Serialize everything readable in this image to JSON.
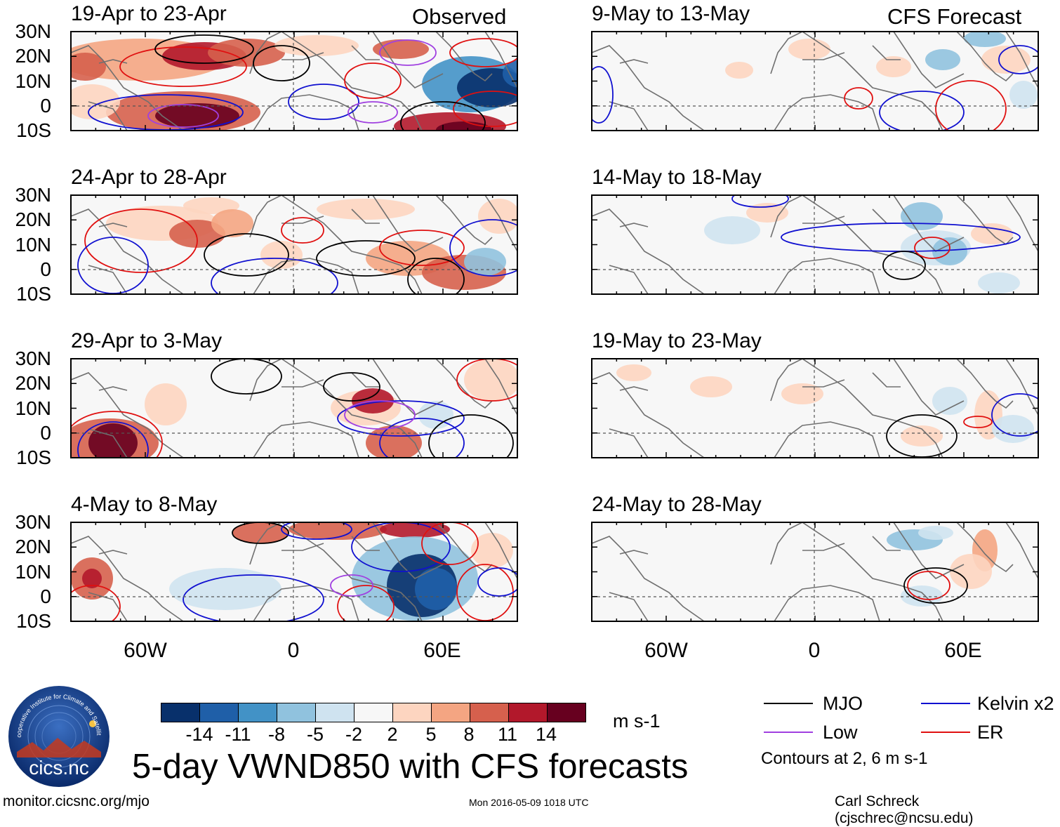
{
  "headers": {
    "observed": "Observed",
    "forecast": "CFS Forecast"
  },
  "panels": [
    {
      "id": "p1",
      "column": "observed",
      "title": "19-Apr to 23-Apr"
    },
    {
      "id": "p2",
      "column": "observed",
      "title": "24-Apr to 28-Apr"
    },
    {
      "id": "p3",
      "column": "observed",
      "title": "29-Apr to 3-May"
    },
    {
      "id": "p4",
      "column": "observed",
      "title": "4-May to 8-May"
    },
    {
      "id": "p5",
      "column": "forecast",
      "title": "9-May to 13-May"
    },
    {
      "id": "p6",
      "column": "forecast",
      "title": "14-May to 18-May"
    },
    {
      "id": "p7",
      "column": "forecast",
      "title": "19-May to 23-May"
    },
    {
      "id": "p8",
      "column": "forecast",
      "title": "24-May to 28-May"
    }
  ],
  "lat_labels": [
    "30N",
    "20N",
    "10N",
    "0",
    "10S"
  ],
  "lon_labels": [
    "60W",
    "0",
    "60E"
  ],
  "colorbar": {
    "colors": [
      "#08306b",
      "#1f5fa8",
      "#4292c6",
      "#90c2de",
      "#cfe3f0",
      "#f7f7f7",
      "#fdd5c0",
      "#f4a582",
      "#d6604d",
      "#b2182b",
      "#67001f"
    ],
    "labels": [
      "-14",
      "-11",
      "-8",
      "-5",
      "-2",
      "2",
      "5",
      "8",
      "11",
      "14"
    ],
    "units": "m s-1"
  },
  "title": "5-day VWND850 with CFS forecasts",
  "legend": {
    "items": [
      {
        "label": "MJO",
        "color": "#000000"
      },
      {
        "label": "Kelvin x2",
        "color": "#1010d0"
      },
      {
        "label": "Low",
        "color": "#a040e0"
      },
      {
        "label": "ER",
        "color": "#e01010"
      }
    ],
    "note": "Contours at 2, 6 m s-1"
  },
  "logo": {
    "text": "cics.nc",
    "ring_text": "Cooperative Institute for Climate and Satellites"
  },
  "footer": {
    "left": "monitor.cicsnc.org/mjo",
    "center": "Mon 2016-05-09 1018 UTC",
    "right": "Carl Schreck (cjschrec@ncsu.edu)"
  }
}
